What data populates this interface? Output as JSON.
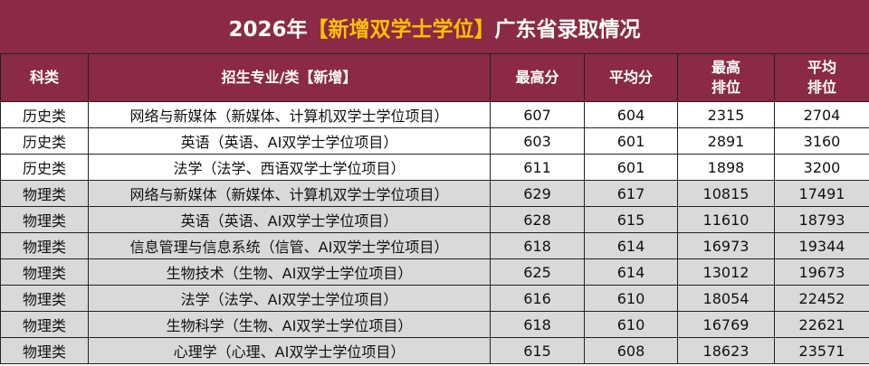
{
  "title": {
    "before": "2026年",
    "highlight": "【新增双学士学位】",
    "after": "广东省录取情况"
  },
  "table": {
    "header": [
      [
        "科类"
      ],
      [
        "招生专业/类【新增】"
      ],
      [
        "最高分"
      ],
      [
        "平均分"
      ],
      [
        "最高",
        "排位"
      ],
      [
        "平均",
        "排位"
      ]
    ],
    "rows": [
      [
        "历史类",
        "网络与新媒体（新媒体、计算机双学士学位项目）",
        607,
        604,
        2315,
        2704
      ],
      [
        "历史类",
        "英语（英语、AI双学士学位项目）",
        603,
        601,
        2891,
        3160
      ],
      [
        "历史类",
        "法学（法学、西语双学士学位项目）",
        611,
        601,
        1898,
        3200
      ],
      [
        "物理类",
        "网络与新媒体（新媒体、计算机双学士学位项目）",
        629,
        617,
        10815,
        17491
      ],
      [
        "物理类",
        "英语（英语、AI双学士学位项目）",
        628,
        615,
        11610,
        18793
      ],
      [
        "物理类",
        "信息管理与信息系统（信管、AI双学士学位项目）",
        618,
        614,
        16973,
        19344
      ],
      [
        "物理类",
        "生物技术（生物、AI双学士学位项目）",
        625,
        614,
        13012,
        19673
      ],
      [
        "物理类",
        "法学（法学、AI双学士学位项目）",
        616,
        610,
        18054,
        22452
      ],
      [
        "物理类",
        "生物科学（生物、AI双学士学位项目）",
        618,
        610,
        16769,
        22621
      ],
      [
        "物理类",
        "心理学（心理、AI双学士学位项目）",
        615,
        608,
        18623,
        23571
      ]
    ]
  }
}
